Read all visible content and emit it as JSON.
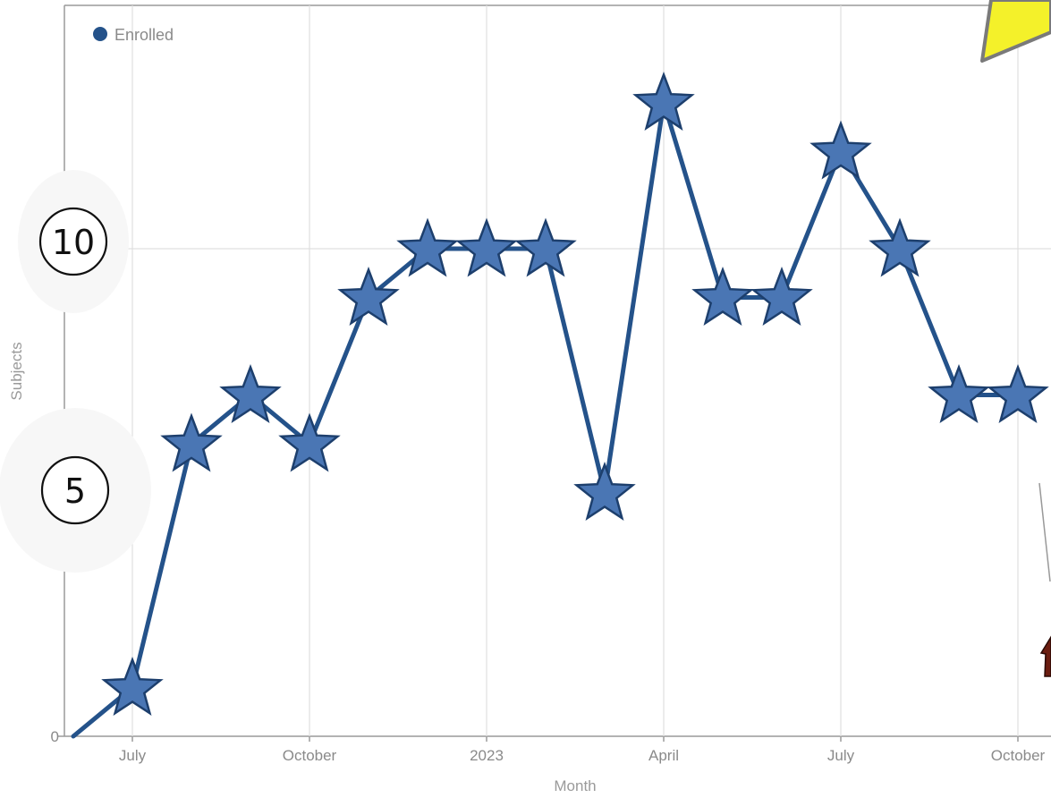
{
  "chart_data": {
    "type": "line",
    "xlabel": "Month",
    "ylabel": "Subjects",
    "x": [
      "2022-06",
      "2022-07",
      "2022-08",
      "2022-09",
      "2022-10",
      "2022-11",
      "2022-12",
      "2023-01",
      "2023-02",
      "2023-03",
      "2023-04",
      "2023-05",
      "2023-06",
      "2023-07",
      "2023-08",
      "2023-09",
      "2023-10"
    ],
    "x_ticks": [
      {
        "month": "2022-07",
        "label": "July"
      },
      {
        "month": "2022-10",
        "label": "October"
      },
      {
        "month": "2023-01",
        "label": "2023"
      },
      {
        "month": "2023-04",
        "label": "April"
      },
      {
        "month": "2023-07",
        "label": "July"
      },
      {
        "month": "2023-10",
        "label": "October"
      }
    ],
    "y_tick_labels": [
      "0"
    ],
    "ylim": [
      0,
      15
    ],
    "grid": true,
    "legend_position": "top-left",
    "series": [
      {
        "name": "Enrolled",
        "color": "#24528a",
        "marker": "star",
        "marker_color": "#4a76b4",
        "values": [
          0,
          1,
          6,
          7,
          6,
          9,
          10,
          10,
          10,
          5,
          13,
          9,
          9,
          12,
          10,
          7,
          7
        ]
      }
    ],
    "annotations": {
      "circled_labels": [
        "⑩",
        "⑤"
      ],
      "overlay_icons": [
        "yellow-star-icon",
        "arrow-icon"
      ]
    }
  }
}
